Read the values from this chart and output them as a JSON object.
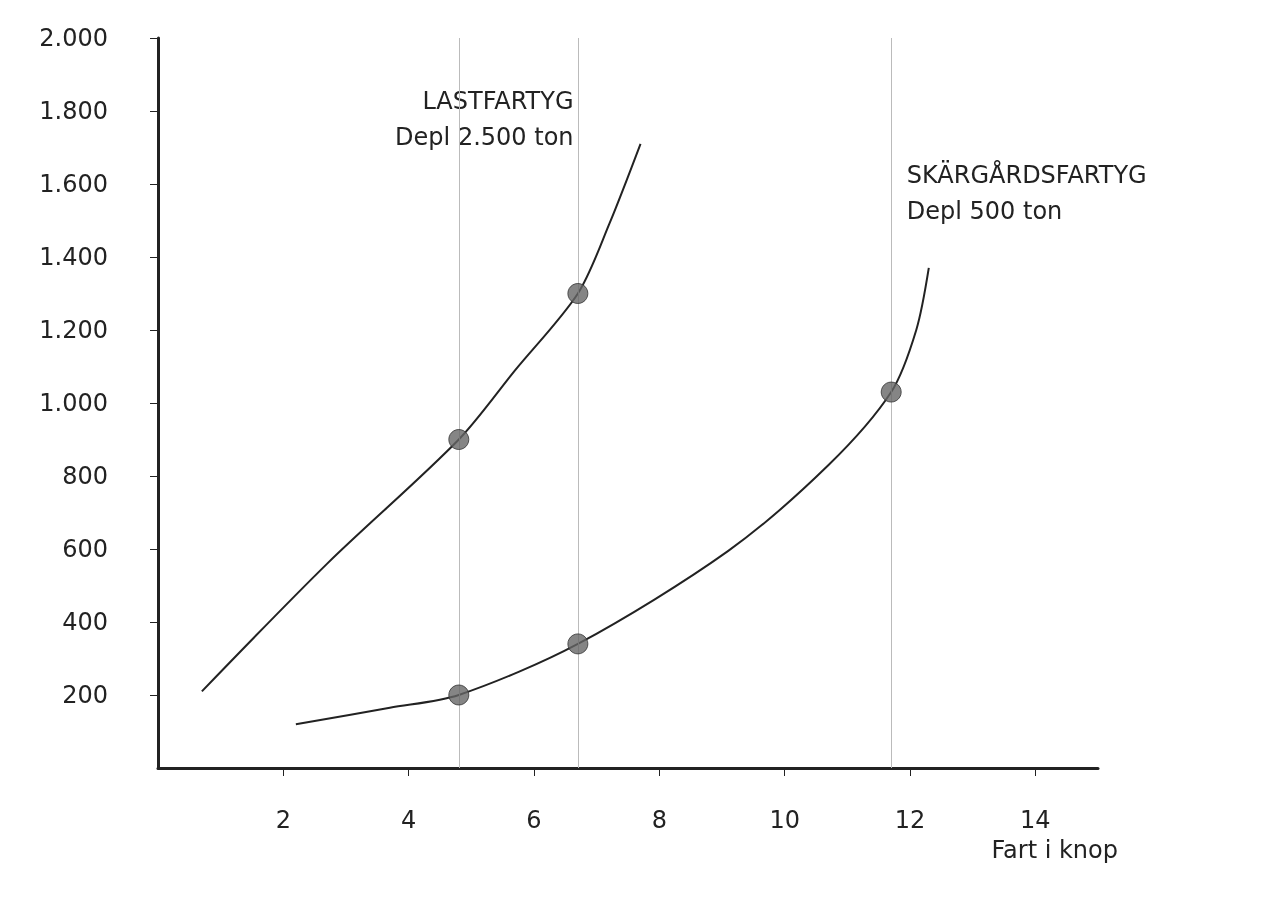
{
  "chart_data": {
    "type": "line",
    "xlabel": "Fart i knop",
    "xlim": [
      0,
      15
    ],
    "xticks": [
      2,
      4,
      6,
      8,
      10,
      12,
      14
    ],
    "ylim": [
      0,
      2000
    ],
    "yticks": [
      200,
      400,
      600,
      800,
      {
        "value": 1000,
        "label": "1.000"
      },
      {
        "value": 1200,
        "label": "1.200"
      },
      {
        "value": 1400,
        "label": "1.400"
      },
      {
        "value": 1600,
        "label": "1.600"
      },
      {
        "value": 1800,
        "label": "1.800"
      },
      {
        "value": 2000,
        "label": "2.000"
      }
    ],
    "grid": false,
    "marker": "none",
    "series": [
      {
        "name": "LASTFARTYG\nDepl 2.500 ton",
        "color": "#222222",
        "x": [
          0.7,
          2.7,
          4.8,
          5.7,
          6.7,
          7.2,
          7.7
        ],
        "values": [
          210,
          560,
          900,
          1090,
          1300,
          1490,
          1710
        ]
      },
      {
        "name": "SKÄRGÅRDSFARTYG\nDepl 500 ton",
        "color": "#222222",
        "x": [
          2.2,
          3.7,
          4.8,
          6.7,
          9.1,
          10.7,
          11.7,
          12.1,
          12.3
        ],
        "values": [
          120,
          165,
          200,
          340,
          595,
          830,
          1030,
          1200,
          1370
        ]
      },
      {
        "type": "scatter",
        "color": "#666666",
        "marker": "circle",
        "x": [
          4.8,
          6.7
        ],
        "values": [
          900,
          1300
        ]
      },
      {
        "type": "scatter",
        "color": "#666666",
        "marker": "circle",
        "x": [
          4.8,
          6.7,
          11.7
        ],
        "values": [
          200,
          340,
          1030
        ]
      }
    ],
    "ref_lines": [
      {
        "axis": "x",
        "value": 4.8,
        "color": "#bbbbbb"
      },
      {
        "axis": "x",
        "value": 6.7,
        "color": "#bbbbbb"
      },
      {
        "axis": "x",
        "value": 11.7,
        "color": "#bbbbbb"
      }
    ]
  }
}
